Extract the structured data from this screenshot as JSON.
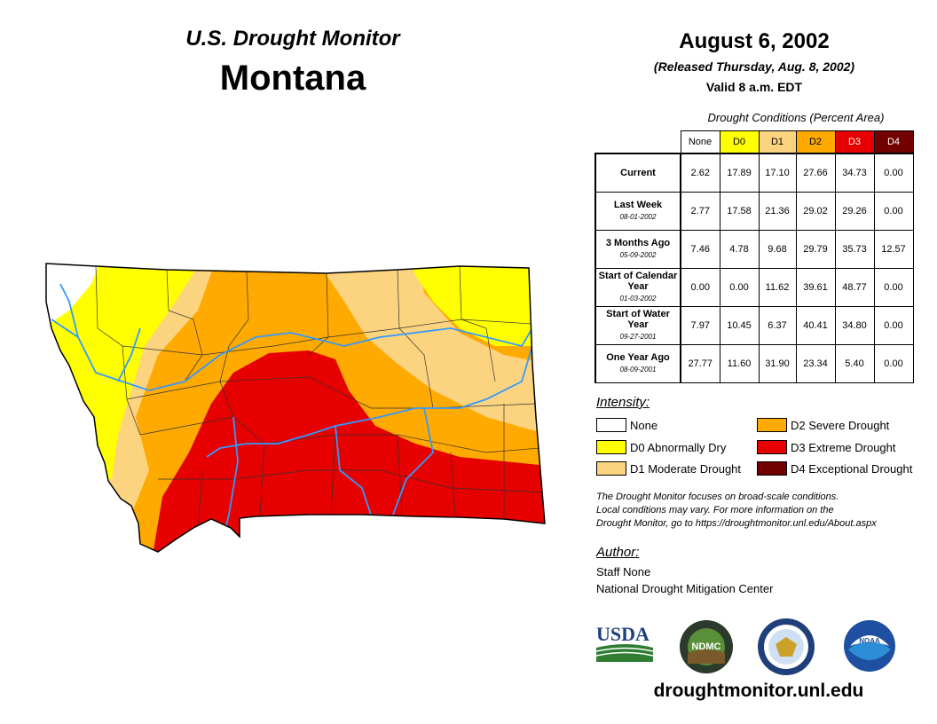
{
  "header": {
    "title": "U.S. Drought Monitor",
    "state": "Montana",
    "date": "August 6, 2002",
    "released": "(Released Thursday, Aug. 8, 2002)",
    "valid": "Valid 8 a.m. EDT"
  },
  "table": {
    "caption": "Drought Conditions (Percent Area)",
    "columns": [
      {
        "label": "None",
        "color": "#ffffff"
      },
      {
        "label": "D0",
        "color": "#ffff00"
      },
      {
        "label": "D1",
        "color": "#fcd37f"
      },
      {
        "label": "D2",
        "color": "#ffaa00"
      },
      {
        "label": "D3",
        "color": "#e60000"
      },
      {
        "label": "D4",
        "color": "#730000"
      }
    ],
    "rows": [
      {
        "label": "Current",
        "sub": "",
        "values": [
          "2.62",
          "17.89",
          "17.10",
          "27.66",
          "34.73",
          "0.00"
        ]
      },
      {
        "label": "Last Week",
        "sub": "08-01-2002",
        "values": [
          "2.77",
          "17.58",
          "21.36",
          "29.02",
          "29.26",
          "0.00"
        ]
      },
      {
        "label": "3 Months Ago",
        "sub": "05-09-2002",
        "values": [
          "7.46",
          "4.78",
          "9.68",
          "29.79",
          "35.73",
          "12.57"
        ]
      },
      {
        "label": "Start of Calendar Year",
        "sub": "01-03-2002",
        "values": [
          "0.00",
          "0.00",
          "11.62",
          "39.61",
          "48.77",
          "0.00"
        ]
      },
      {
        "label": "Start of Water Year",
        "sub": "09-27-2001",
        "values": [
          "7.97",
          "10.45",
          "6.37",
          "40.41",
          "34.80",
          "0.00"
        ]
      },
      {
        "label": "One Year Ago",
        "sub": "08-09-2001",
        "values": [
          "27.77",
          "11.60",
          "31.90",
          "23.34",
          "5.40",
          "0.00"
        ]
      }
    ]
  },
  "legend": {
    "title": "Intensity:",
    "items": [
      {
        "label": "None",
        "color": "#ffffff"
      },
      {
        "label": "D0 Abnormally Dry",
        "color": "#ffff00"
      },
      {
        "label": "D1 Moderate Drought",
        "color": "#fcd37f"
      },
      {
        "label": "D2 Severe Drought",
        "color": "#ffaa00"
      },
      {
        "label": "D3 Extreme Drought",
        "color": "#e60000"
      },
      {
        "label": "D4 Exceptional Drought",
        "color": "#730000"
      }
    ]
  },
  "note": {
    "line1": "The Drought Monitor focuses on broad-scale conditions.",
    "line2": "Local conditions may vary. For more information on the",
    "line3": "Drought Monitor, go to https://droughtmonitor.unl.edu/About.aspx"
  },
  "author": {
    "title": "Author:",
    "name": "Staff None",
    "org": "National Drought Mitigation Center"
  },
  "logos": {
    "usda": "USDA",
    "ndmc": "NDMC",
    "noaa": "NOAA"
  },
  "footer": {
    "site": "droughtmonitor.unl.edu"
  },
  "colors": {
    "none": "#ffffff",
    "d0": "#ffff00",
    "d1": "#fcd37f",
    "d2": "#ffaa00",
    "d3": "#e60000",
    "d4": "#730000",
    "rivers": "#3399ff"
  }
}
